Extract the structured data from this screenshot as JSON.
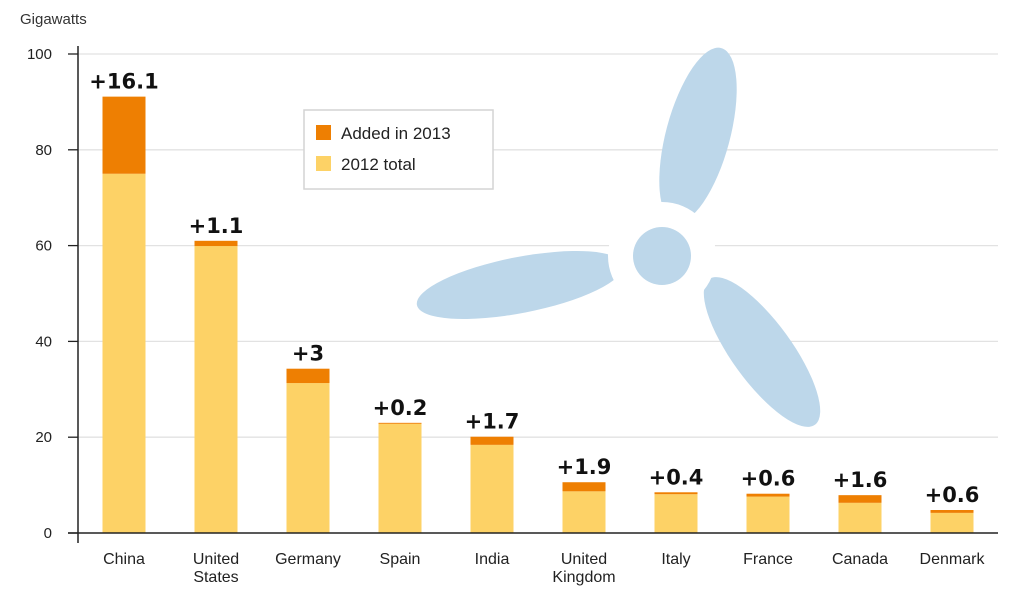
{
  "chart_data": {
    "type": "bar",
    "stacked": true,
    "title": "",
    "xlabel": "",
    "ylabel": "Gigawatts",
    "ylim": [
      0,
      100
    ],
    "yticks": [
      0,
      20,
      40,
      60,
      80,
      100
    ],
    "grid": true,
    "legend_position": "top-center",
    "categories": [
      [
        "China"
      ],
      [
        "United",
        "States"
      ],
      [
        "Germany"
      ],
      [
        "Spain"
      ],
      [
        "India"
      ],
      [
        "United",
        "Kingdom"
      ],
      [
        "Italy"
      ],
      [
        "France"
      ],
      [
        "Canada"
      ],
      [
        "Denmark"
      ]
    ],
    "series": [
      {
        "name": "2012 total",
        "color": "#FDD266",
        "values": [
          75.0,
          59.9,
          31.3,
          22.8,
          18.4,
          8.7,
          8.1,
          7.6,
          6.3,
          4.2
        ]
      },
      {
        "name": "Added in 2013",
        "color": "#EE7F02",
        "values": [
          16.1,
          1.1,
          3.0,
          0.2,
          1.7,
          1.9,
          0.4,
          0.6,
          1.6,
          0.6
        ]
      }
    ],
    "data_labels": [
      "+16.1",
      "+1.1",
      "+3",
      "+0.2",
      "+1.7",
      "+1.9",
      "+0.4",
      "+0.6",
      "+1.6",
      "+0.6"
    ]
  },
  "decoration": {
    "name": "wind-turbine-illustration",
    "color": "#BDD7EA"
  }
}
